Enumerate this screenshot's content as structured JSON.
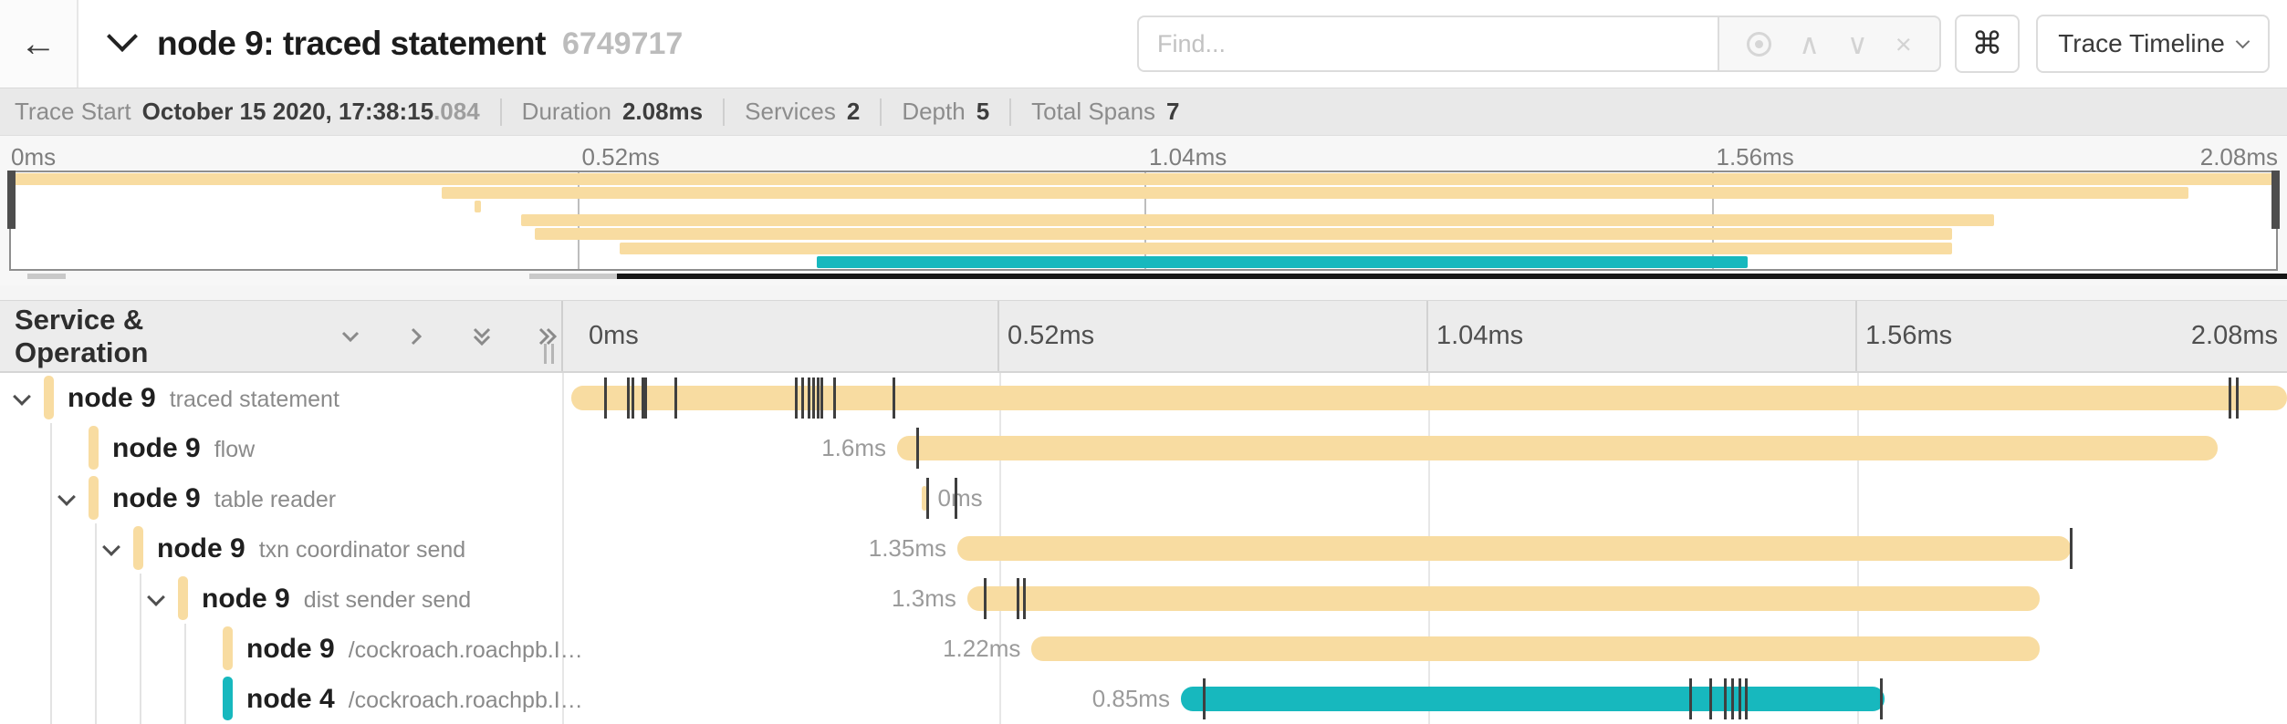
{
  "header": {
    "back_label": "←",
    "title": "node 9: traced statement",
    "trace_id": "6749717",
    "find_placeholder": "Find...",
    "nav_up": "∧",
    "nav_down": "∨",
    "nav_clear": "×",
    "shortcut_key": "⌘",
    "view_selector": "Trace Timeline"
  },
  "summary": {
    "trace_start_label": "Trace Start",
    "trace_start_value": "October 15 2020, 17:38:15",
    "trace_start_ms": ".084",
    "duration_label": "Duration",
    "duration_value": "2.08ms",
    "services_label": "Services",
    "services_value": "2",
    "depth_label": "Depth",
    "depth_value": "5",
    "total_spans_label": "Total Spans",
    "total_spans_value": "7"
  },
  "timeline_header": {
    "title": "Service & Operation"
  },
  "axis": {
    "total_ms": 2.08,
    "ticks": [
      {
        "t": 0,
        "label": "0ms"
      },
      {
        "t": 0.52,
        "label": "0.52ms"
      },
      {
        "t": 1.04,
        "label": "1.04ms"
      },
      {
        "t": 1.56,
        "label": "1.56ms"
      },
      {
        "t": 2.08,
        "label": "2.08ms"
      }
    ]
  },
  "colors": {
    "yellow": "#F8DCA1",
    "teal": "#17B8BE"
  },
  "spans": [
    {
      "service": "node 9",
      "operation": "traced statement",
      "depth": 0,
      "has_children": true,
      "color": "yellow",
      "start_ms": 0,
      "end_ms": 2.08,
      "duration_label": "",
      "label_side": "none",
      "log_ticks": [
        0.041,
        0.069,
        0.074,
        0.086,
        0.09,
        0.126,
        0.272,
        0.28,
        0.288,
        0.293,
        0.299,
        0.303,
        0.319,
        0.39,
        2.01,
        2.019
      ]
    },
    {
      "service": "node 9",
      "operation": "flow",
      "depth": 1,
      "has_children": false,
      "color": "yellow",
      "start_ms": 0.395,
      "end_ms": 1.996,
      "duration_label": "1.6ms",
      "label_side": "left",
      "log_ticks": [
        0.419
      ]
    },
    {
      "service": "node 9",
      "operation": "table reader",
      "depth": 1,
      "has_children": true,
      "color": "yellow",
      "start_ms": 0.425,
      "end_ms": 0.431,
      "duration_label": "0ms",
      "label_side": "right",
      "log_ticks": [
        0.432,
        0.466
      ]
    },
    {
      "service": "node 9",
      "operation": "txn coordinator send",
      "depth": 2,
      "has_children": true,
      "color": "yellow",
      "start_ms": 0.468,
      "end_ms": 1.818,
      "duration_label": "1.35ms",
      "label_side": "left",
      "log_ticks": [
        1.818
      ]
    },
    {
      "service": "node 9",
      "operation": "dist sender send",
      "depth": 3,
      "has_children": true,
      "color": "yellow",
      "start_ms": 0.48,
      "end_ms": 1.78,
      "duration_label": "1.3ms",
      "label_side": "left",
      "log_ticks": [
        0.501,
        0.541,
        0.549
      ]
    },
    {
      "service": "node 9",
      "operation": "/cockroach.roachpb.I…",
      "depth": 4,
      "has_children": false,
      "color": "yellow",
      "start_ms": 0.558,
      "end_ms": 1.78,
      "duration_label": "1.22ms",
      "label_side": "left",
      "log_ticks": []
    },
    {
      "service": "node 4",
      "operation": "/cockroach.roachpb.I…",
      "depth": 4,
      "has_children": false,
      "color": "teal",
      "start_ms": 0.739,
      "end_ms": 1.592,
      "duration_label": "0.85ms",
      "label_side": "left",
      "log_ticks": [
        0.767,
        1.356,
        1.381,
        1.399,
        1.407,
        1.416,
        1.424,
        1.588
      ]
    }
  ]
}
